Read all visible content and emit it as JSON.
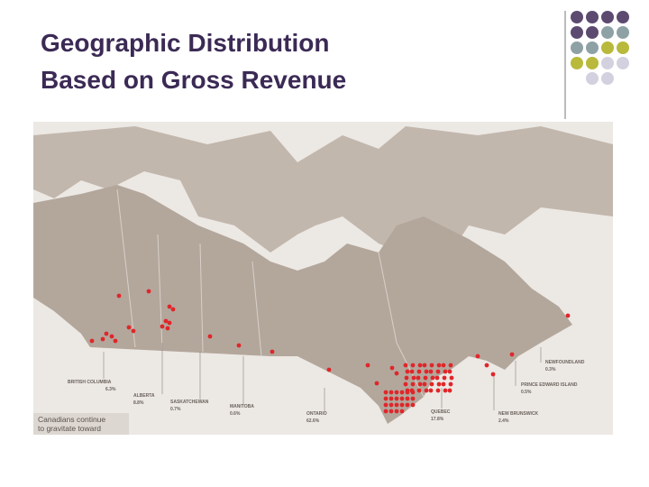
{
  "header": {
    "title": [
      "Geographic Distribution",
      "Based on Gross Revenue"
    ]
  },
  "map": {
    "regions": [
      {
        "name": "BRITISH COLUMBIA",
        "share": "6.3%"
      },
      {
        "name": "ALBERTA",
        "share": "8.8%"
      },
      {
        "name": "SASKATCHEWAN",
        "share": "0.7%"
      },
      {
        "name": "MANITOBA",
        "share": "0.6%"
      },
      {
        "name": "ONTARIO",
        "share": "62.6%"
      },
      {
        "name": "QUEBEC",
        "share": "17.8%"
      },
      {
        "name": "NEW BRUNSWICK",
        "share": "2.4%"
      },
      {
        "name": "PRINCE EDWARD ISLAND",
        "share": "0.5%"
      },
      {
        "name": "NEWFOUNDLAND",
        "share": "0.3%"
      }
    ],
    "caption": [
      "Canadians continue",
      "to gravitate toward"
    ]
  }
}
